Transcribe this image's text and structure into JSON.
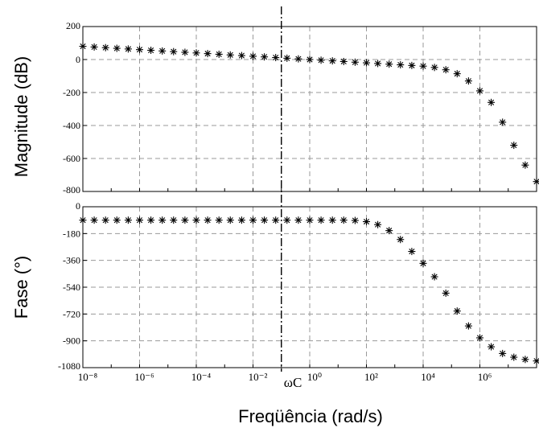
{
  "chart_data": [
    {
      "type": "scatter",
      "ylabel": "Magnitude (dB)",
      "xscale": "log",
      "xlim": [
        1e-08,
        100000000.0
      ],
      "ylim": [
        -800,
        200
      ],
      "yticks": [
        "200",
        "0",
        "-200",
        "-400",
        "-600",
        "-800"
      ],
      "grid": true,
      "series": [
        {
          "marker": "*",
          "x": [
            1e-08,
            2.51e-08,
            6.31e-08,
            1.58e-07,
            3.98e-07,
            1e-06,
            2.51e-06,
            6.31e-06,
            1.58e-05,
            3.98e-05,
            0.0001,
            0.000251,
            0.000631,
            0.00158,
            0.00398,
            0.01,
            0.0251,
            0.0631,
            0.158,
            0.398,
            1,
            2.51,
            6.31,
            15.8,
            39.8,
            100,
            251,
            631,
            1580,
            3980,
            10000.0,
            25100.0,
            63100.0,
            158000.0,
            398000.0,
            1000000.0,
            2510000.0,
            6310000.0,
            15800000.0,
            39800000.0,
            100000000.0
          ],
          "y": [
            80,
            76,
            72,
            68,
            64,
            60,
            56,
            52,
            48,
            44,
            40,
            36,
            32,
            28,
            24,
            20,
            16,
            12,
            8,
            4,
            0,
            -4,
            -8,
            -12,
            -16,
            -20,
            -24,
            -28,
            -32,
            -36,
            -40,
            -48,
            -62,
            -86,
            -130,
            -190,
            -260,
            -380,
            -520,
            -640,
            -740
          ]
        }
      ]
    },
    {
      "type": "scatter",
      "ylabel": "Fase (°)",
      "xlabel": "Freqüência (rad/s)",
      "xscale": "log",
      "xlim": [
        1e-08,
        100000000.0
      ],
      "ylim": [
        -1080,
        0
      ],
      "yticks": [
        "0",
        "-180",
        "-360",
        "-540",
        "-720",
        "-900",
        "-1080"
      ],
      "xticks": [
        "10⁻⁸",
        "10⁻⁶",
        "10⁻⁴",
        "10⁻²",
        "10⁰",
        "10²",
        "10⁴",
        "10⁶"
      ],
      "grid": true,
      "series": [
        {
          "marker": "*",
          "x": [
            1e-08,
            2.51e-08,
            6.31e-08,
            1.58e-07,
            3.98e-07,
            1e-06,
            2.51e-06,
            6.31e-06,
            1.58e-05,
            3.98e-05,
            0.0001,
            0.000251,
            0.000631,
            0.00158,
            0.00398,
            0.01,
            0.0251,
            0.0631,
            0.158,
            0.398,
            1,
            2.51,
            6.31,
            15.8,
            39.8,
            100,
            251,
            631,
            1580,
            3980,
            10000.0,
            25100.0,
            63100.0,
            158000.0,
            398000.0,
            1000000.0,
            2510000.0,
            6310000.0,
            15800000.0,
            39800000.0,
            100000000.0
          ],
          "y": [
            -90,
            -90,
            -90,
            -90,
            -90,
            -90,
            -90,
            -90,
            -90,
            -90,
            -90,
            -90,
            -90,
            -90,
            -90,
            -90,
            -90,
            -90,
            -90,
            -90,
            -90,
            -90,
            -90,
            -90,
            -92,
            -100,
            -120,
            -160,
            -220,
            -300,
            -380,
            -470,
            -580,
            -700,
            -800,
            -880,
            -940,
            -985,
            -1010,
            -1025,
            -1035
          ]
        }
      ]
    }
  ],
  "annotation": {
    "label": "ωC",
    "x": 0.1
  }
}
